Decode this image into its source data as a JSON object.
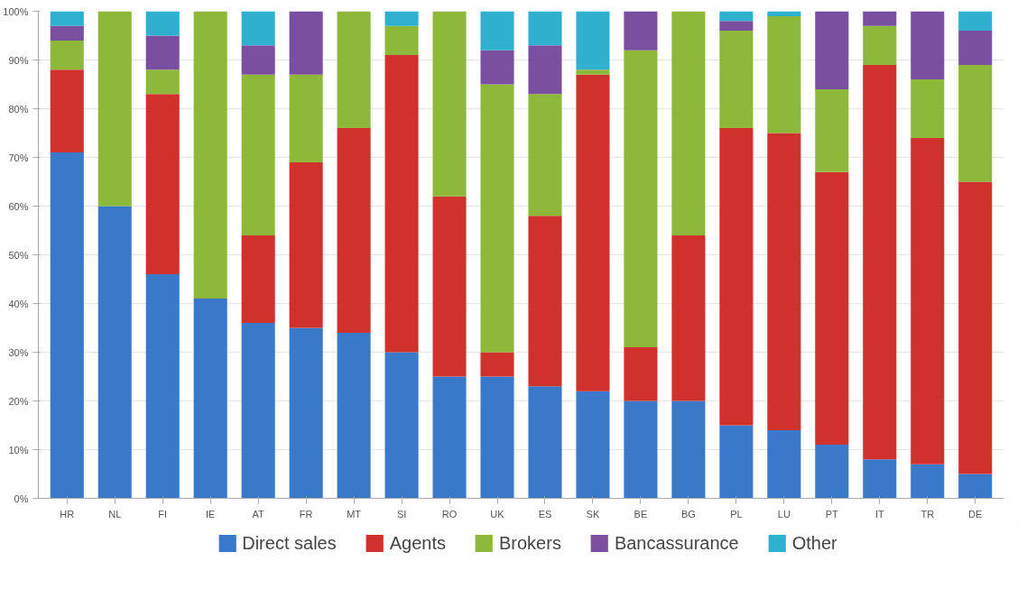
{
  "chart_data": {
    "type": "bar",
    "stacked": true,
    "categories": [
      "HR",
      "NL",
      "FI",
      "IE",
      "AT",
      "FR",
      "MT",
      "SI",
      "RO",
      "UK",
      "ES",
      "SK",
      "BE",
      "BG",
      "PL",
      "LU",
      "PT",
      "IT",
      "TR",
      "DE"
    ],
    "series": [
      {
        "name": "Direct sales",
        "color": "#3a78c9",
        "values": [
          71,
          60,
          46,
          41,
          36,
          35,
          34,
          30,
          25,
          25,
          23,
          22,
          20,
          20,
          15,
          14,
          11,
          8,
          7,
          5
        ]
      },
      {
        "name": "Agents",
        "color": "#d0312d",
        "values": [
          17,
          0,
          37,
          0,
          18,
          34,
          42,
          61,
          37,
          5,
          35,
          65,
          11,
          34,
          61,
          61,
          56,
          81,
          67,
          60
        ]
      },
      {
        "name": "Brokers",
        "color": "#8db83a",
        "values": [
          6,
          40,
          5,
          59,
          33,
          18,
          24,
          6,
          38,
          55,
          25,
          1,
          61,
          46,
          20,
          24,
          17,
          8,
          12,
          24
        ]
      },
      {
        "name": "Bancassurance",
        "color": "#7b4fa0",
        "values": [
          3,
          0,
          7,
          0,
          6,
          13,
          0,
          0,
          0,
          7,
          10,
          0,
          8,
          0,
          2,
          0,
          16,
          3,
          14,
          7
        ]
      },
      {
        "name": "Other",
        "color": "#2fb0cf",
        "values": [
          3,
          0,
          5,
          0,
          7,
          0,
          0,
          3,
          0,
          8,
          7,
          12,
          0,
          0,
          2,
          1,
          0,
          0,
          0,
          4
        ]
      }
    ],
    "ylim": [
      0,
      100
    ],
    "yticks": [
      {
        "value": 0,
        "label": "0%"
      },
      {
        "value": 10,
        "label": "10%"
      },
      {
        "value": 20,
        "label": "20%"
      },
      {
        "value": 30,
        "label": "30%"
      },
      {
        "value": 40,
        "label": "40%"
      },
      {
        "value": 50,
        "label": "50%"
      },
      {
        "value": 60,
        "label": "60%"
      },
      {
        "value": 70,
        "label": "70%"
      },
      {
        "value": 80,
        "label": "80%"
      },
      {
        "value": 90,
        "label": "90%"
      },
      {
        "value": 100,
        "label": "100%"
      }
    ],
    "grid": "y",
    "legend": "bottom"
  }
}
